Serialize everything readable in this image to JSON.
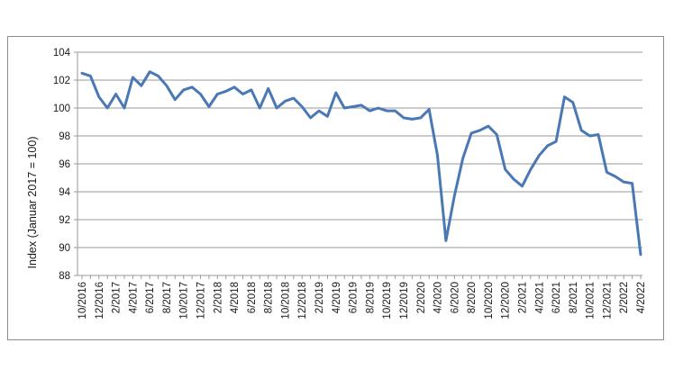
{
  "chart_data": {
    "type": "line",
    "ylabel": "Index (Januar 2017 = 100)",
    "ylim": [
      88,
      104
    ],
    "yticks": [
      88,
      90,
      92,
      94,
      96,
      98,
      100,
      102,
      104
    ],
    "grid": true,
    "x_tick_labels": [
      "10/2016",
      "12/2016",
      "2/2017",
      "4/2017",
      "6/2017",
      "8/2017",
      "10/2017",
      "12/2017",
      "2/2018",
      "4/2018",
      "6/2018",
      "8/2018",
      "10/2018",
      "12/2018",
      "2/2019",
      "4/2019",
      "6/2019",
      "8/2019",
      "10/2019",
      "12/2019",
      "2/2020",
      "4/2020",
      "6/2020",
      "8/2020",
      "10/2020",
      "12/2020",
      "2/2021",
      "4/2021",
      "6/2021",
      "8/2021",
      "10/2021",
      "12/2021",
      "2/2022",
      "4/2022"
    ],
    "series": [
      {
        "color": "#4a78b5",
        "x": [
          "10/2016",
          "11/2016",
          "12/2016",
          "1/2017",
          "2/2017",
          "3/2017",
          "4/2017",
          "5/2017",
          "6/2017",
          "7/2017",
          "8/2017",
          "9/2017",
          "10/2017",
          "11/2017",
          "12/2017",
          "1/2018",
          "2/2018",
          "3/2018",
          "4/2018",
          "5/2018",
          "6/2018",
          "7/2018",
          "8/2018",
          "9/2018",
          "10/2018",
          "11/2018",
          "12/2018",
          "1/2019",
          "2/2019",
          "3/2019",
          "4/2019",
          "5/2019",
          "6/2019",
          "7/2019",
          "8/2019",
          "9/2019",
          "10/2019",
          "11/2019",
          "12/2019",
          "1/2020",
          "2/2020",
          "3/2020",
          "4/2020",
          "5/2020",
          "6/2020",
          "7/2020",
          "8/2020",
          "9/2020",
          "10/2020",
          "11/2020",
          "12/2020",
          "1/2021",
          "2/2021",
          "3/2021",
          "4/2021",
          "5/2021",
          "6/2021",
          "7/2021",
          "8/2021",
          "9/2021",
          "10/2021",
          "11/2021",
          "12/2021",
          "1/2022",
          "2/2022",
          "3/2022",
          "4/2022"
        ],
        "values": [
          102.5,
          102.3,
          100.8,
          100.0,
          101.0,
          100.0,
          102.2,
          101.6,
          102.6,
          102.3,
          101.6,
          100.6,
          101.3,
          101.5,
          101.0,
          100.1,
          101.0,
          101.2,
          101.5,
          101.0,
          101.3,
          100.0,
          101.4,
          100.0,
          100.5,
          100.7,
          100.1,
          99.3,
          99.8,
          99.4,
          101.1,
          100.0,
          100.1,
          100.2,
          99.8,
          100.0,
          99.8,
          99.8,
          99.3,
          99.2,
          99.3,
          99.9,
          96.6,
          90.5,
          93.7,
          96.4,
          98.2,
          98.4,
          98.7,
          98.1,
          95.6,
          94.9,
          94.4,
          95.6,
          96.6,
          97.3,
          97.6,
          100.8,
          100.4,
          98.4,
          98.0,
          98.1,
          95.4,
          95.1,
          94.7,
          94.6,
          89.5
        ]
      }
    ]
  }
}
